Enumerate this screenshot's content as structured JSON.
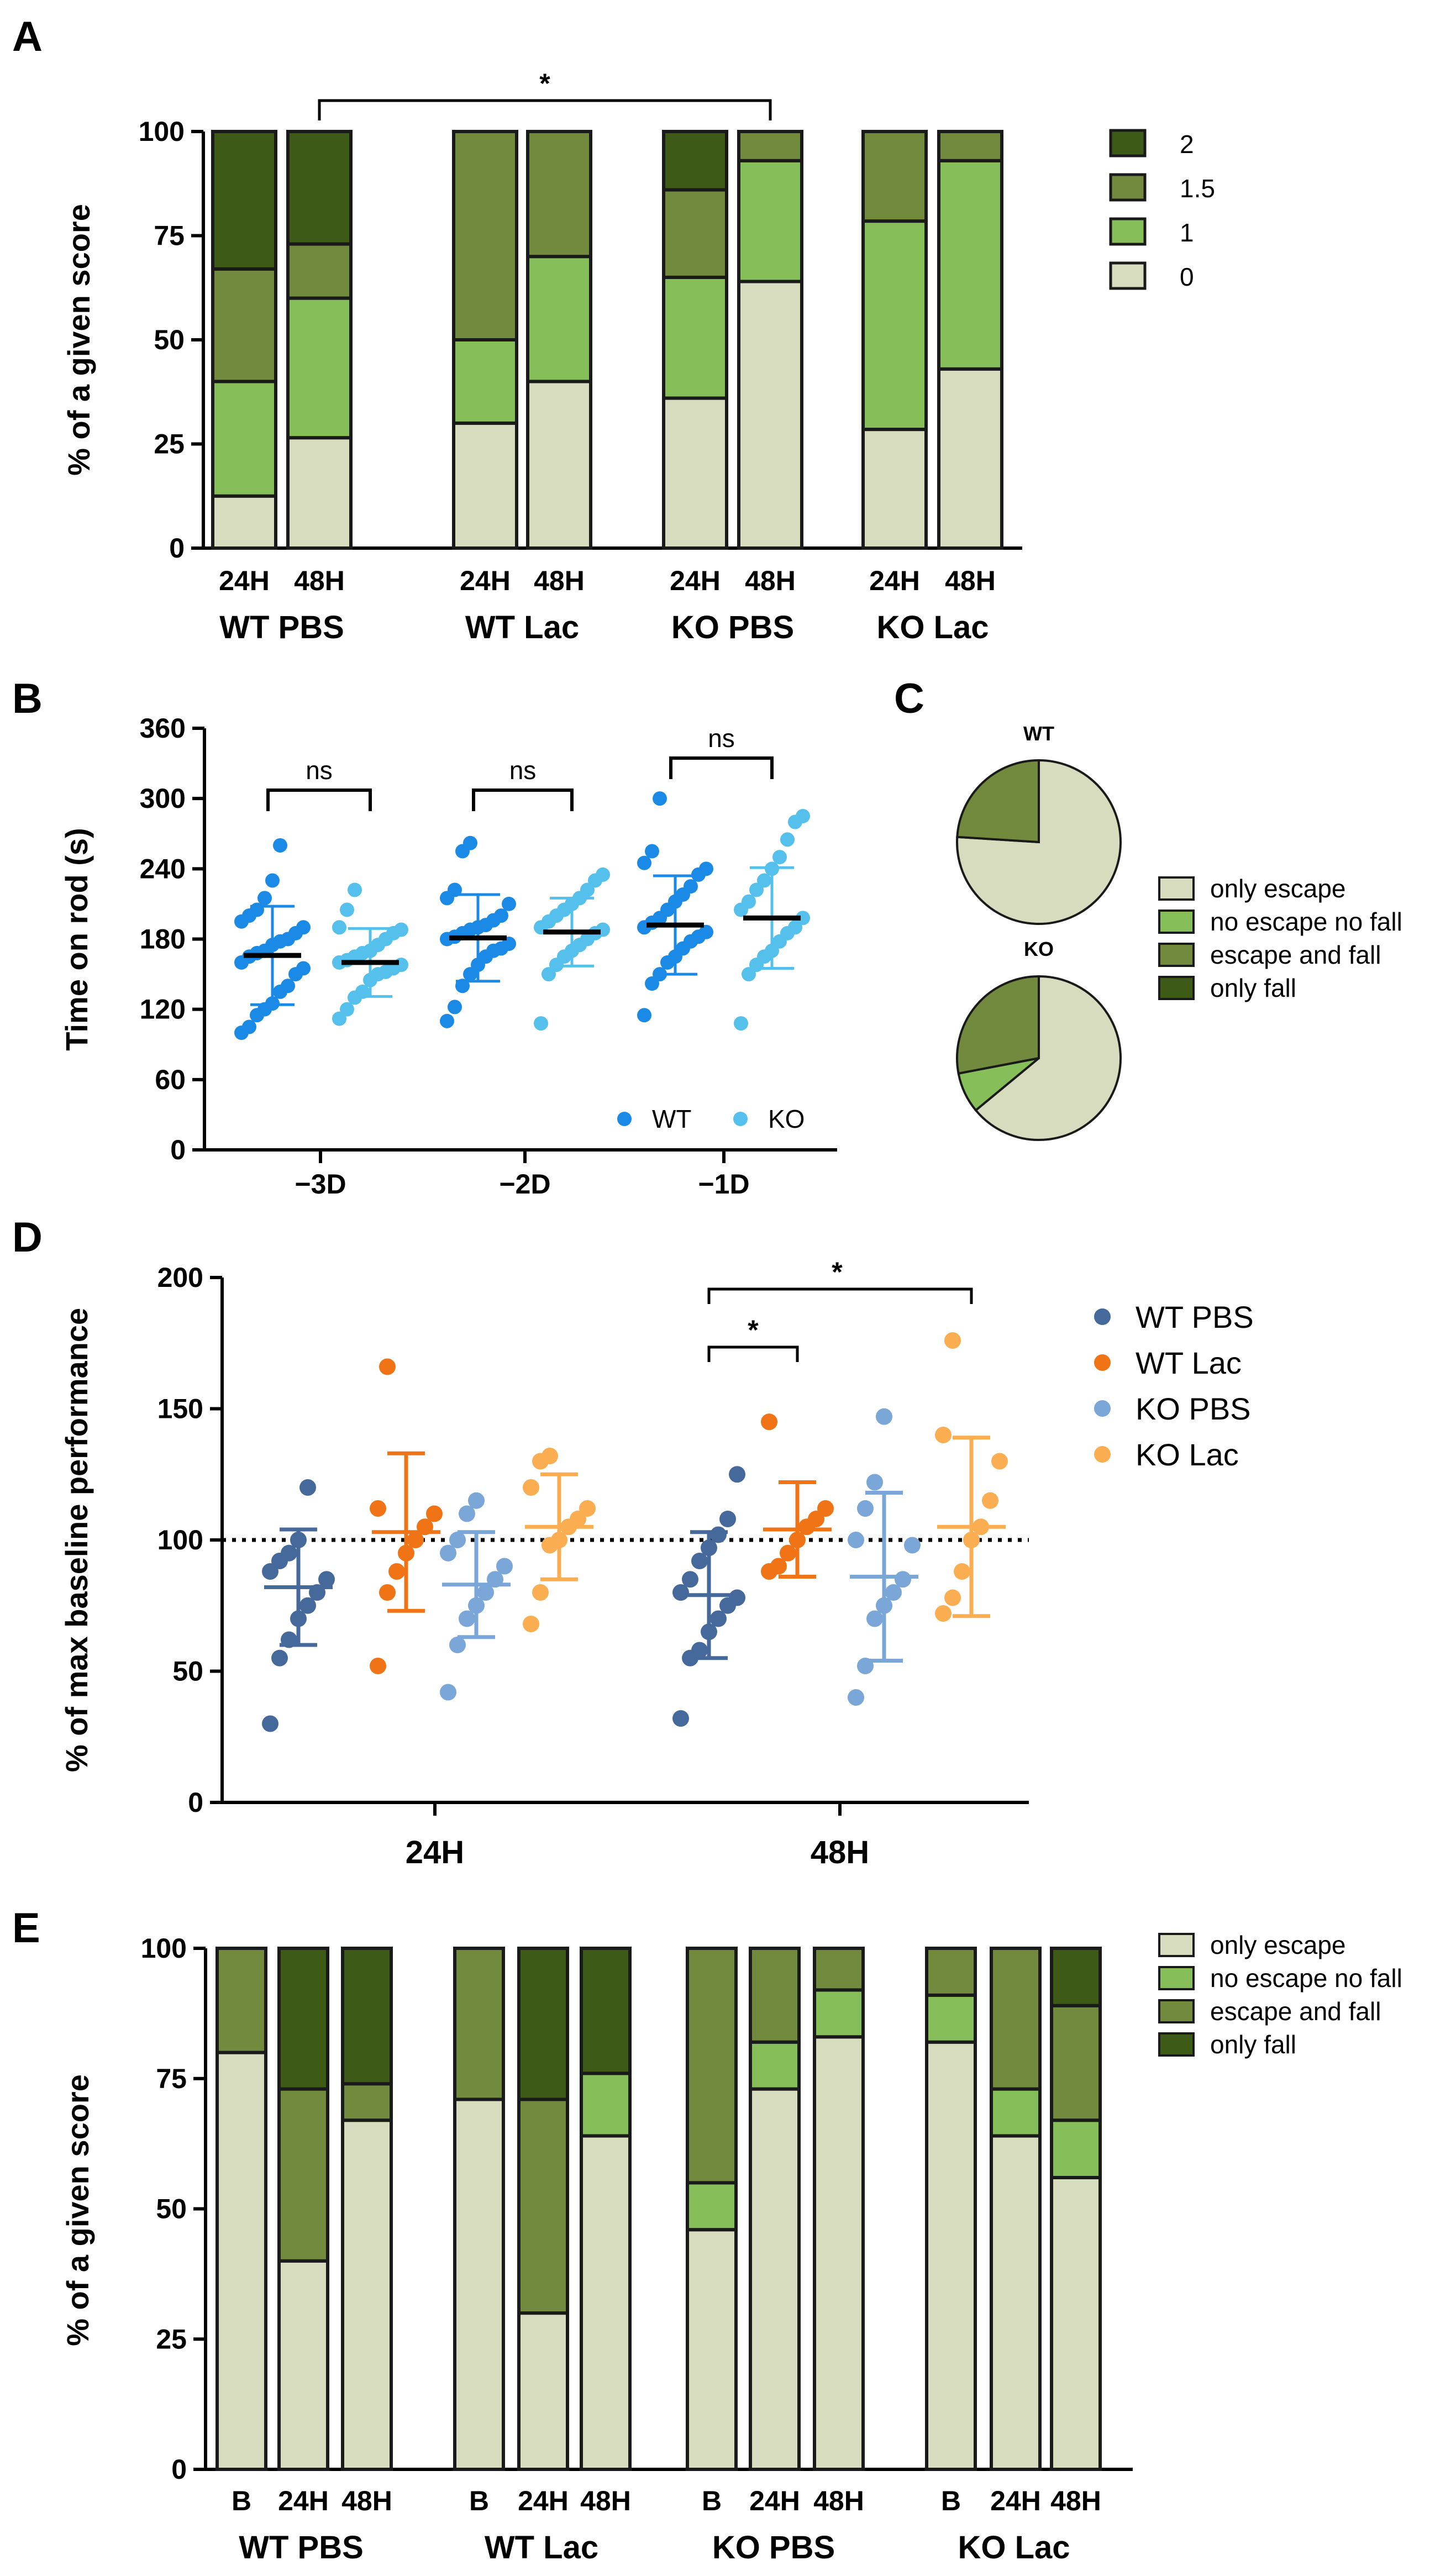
{
  "colors": {
    "score_0": "#d8dcbf",
    "score_1": "#86bf5a",
    "score_1_5": "#718a3d",
    "score_2": "#3d5a17",
    "wt": "#1a8ae6",
    "ko": "#55c0ec",
    "wt_pbs": "#46699b",
    "wt_lac": "#f07316",
    "ko_pbs": "#7aa6d8",
    "ko_lac": "#fbad52"
  },
  "panels": {
    "a": "A",
    "b": "B",
    "c": "C",
    "d": "D",
    "e": "E"
  },
  "chart_data": [
    {
      "id": "A",
      "type": "bar",
      "stacked": true,
      "ylabel": "% of a given score",
      "ylim": [
        0,
        100
      ],
      "yticks": [
        0,
        25,
        50,
        75,
        100
      ],
      "groups": [
        "WT PBS",
        "WT Lac",
        "KO PBS",
        "KO Lac"
      ],
      "categories": [
        "24H",
        "48H",
        "24H",
        "48H",
        "24H",
        "48H",
        "24H",
        "48H"
      ],
      "legend": [
        "2",
        "1.5",
        "1",
        "0"
      ],
      "series": [
        {
          "name": "0",
          "values": [
            12.5,
            26.5,
            30,
            40,
            36,
            64,
            28.5,
            43
          ]
        },
        {
          "name": "1",
          "values": [
            27.5,
            33.5,
            20,
            30,
            29,
            29,
            50,
            50
          ]
        },
        {
          "name": "1.5",
          "values": [
            27,
            13,
            50,
            30,
            21,
            7,
            21.5,
            7
          ]
        },
        {
          "name": "2",
          "values": [
            33,
            27,
            0,
            0,
            14,
            0,
            0,
            0
          ]
        }
      ],
      "significance": [
        {
          "from": 1,
          "to": 5,
          "label": "*"
        }
      ]
    },
    {
      "id": "B",
      "type": "scatter",
      "ylabel": "Time on rod (s)",
      "ylim": [
        0,
        360
      ],
      "yticks": [
        0,
        60,
        120,
        180,
        240,
        300,
        360
      ],
      "categories": [
        "−3D",
        "−2D",
        "−1D"
      ],
      "legend": [
        "WT",
        "KO"
      ],
      "significance": [
        "ns",
        "ns",
        "ns"
      ],
      "series": [
        {
          "name": "WT",
          "means": [
            166,
            181,
            192
          ],
          "sds": [
            42,
            37,
            42
          ],
          "points": [
            [
              100,
              105,
              115,
              120,
              125,
              135,
              140,
              150,
              155,
              160,
              165,
              168,
              170,
              175,
              178,
              180,
              185,
              190,
              195,
              200,
              205,
              215,
              230,
              260
            ],
            [
              110,
              122,
              140,
              150,
              158,
              165,
              170,
              172,
              176,
              180,
              182,
              185,
              188,
              190,
              192,
              196,
              200,
              210,
              215,
              222,
              255,
              262
            ],
            [
              115,
              142,
              150,
              160,
              165,
              172,
              178,
              182,
              186,
              190,
              194,
              198,
              205,
              212,
              218,
              225,
              235,
              240,
              245,
              255,
              300
            ]
          ]
        },
        {
          "name": "KO",
          "means": [
            160,
            186,
            198
          ],
          "sds": [
            29,
            29,
            43
          ],
          "points": [
            [
              112,
              120,
              130,
              135,
              145,
              150,
              152,
              155,
              158,
              160,
              162,
              165,
              168,
              170,
              175,
              180,
              185,
              188,
              190,
              205,
              222
            ],
            [
              108,
              150,
              158,
              165,
              170,
              175,
              180,
              185,
              188,
              190,
              195,
              200,
              205,
              210,
              215,
              222,
              230,
              235
            ],
            [
              108,
              150,
              158,
              165,
              170,
              178,
              185,
              190,
              198,
              205,
              212,
              222,
              230,
              240,
              250,
              265,
              280,
              285
            ]
          ]
        }
      ]
    },
    {
      "id": "C",
      "type": "pie",
      "legend": [
        "only escape",
        "no escape no fall",
        "escape and fall",
        "only fall"
      ],
      "pies": [
        {
          "title": "WT",
          "values": [
            76,
            0,
            24,
            0
          ]
        },
        {
          "title": "KO",
          "values": [
            64,
            8,
            28,
            0
          ]
        }
      ]
    },
    {
      "id": "D",
      "type": "scatter",
      "ylabel": "% of max baseline performance",
      "ylim": [
        0,
        200
      ],
      "yticks": [
        0,
        50,
        100,
        150,
        200
      ],
      "categories": [
        "24H",
        "48H"
      ],
      "reference_line": 100,
      "legend": [
        "WT PBS",
        "WT Lac",
        "KO PBS",
        "KO Lac"
      ],
      "significance": [
        {
          "from": "WT PBS 48H",
          "to": "WT Lac 48H",
          "label": "*"
        },
        {
          "from": "WT PBS 48H",
          "to": "KO Lac 48H",
          "label": "*"
        }
      ],
      "series": [
        {
          "name": "WT PBS",
          "means": [
            82,
            79
          ],
          "sds": [
            22,
            24
          ],
          "points": [
            [
              30,
              55,
              62,
              70,
              75,
              80,
              85,
              88,
              92,
              95,
              100,
              120
            ],
            [
              32,
              55,
              58,
              65,
              70,
              75,
              78,
              80,
              85,
              92,
              97,
              102,
              108,
              125
            ]
          ]
        },
        {
          "name": "WT Lac",
          "means": [
            103,
            104
          ],
          "sds": [
            30,
            18
          ],
          "points": [
            [
              52,
              80,
              88,
              95,
              100,
              105,
              110,
              112,
              166
            ],
            [
              88,
              90,
              95,
              100,
              105,
              108,
              112,
              145
            ]
          ]
        },
        {
          "name": "KO PBS",
          "means": [
            83,
            86
          ],
          "sds": [
            20,
            32
          ],
          "points": [
            [
              42,
              60,
              70,
              75,
              80,
              85,
              90,
              95,
              100,
              110,
              115
            ],
            [
              40,
              52,
              70,
              75,
              80,
              85,
              98,
              100,
              112,
              122,
              147
            ]
          ]
        },
        {
          "name": "KO Lac",
          "means": [
            105,
            105
          ],
          "sds": [
            20,
            34
          ],
          "points": [
            [
              68,
              80,
              98,
              100,
              105,
              108,
              112,
              120,
              130,
              132
            ],
            [
              72,
              78,
              88,
              100,
              105,
              115,
              130,
              140,
              176
            ]
          ]
        }
      ]
    },
    {
      "id": "E",
      "type": "bar",
      "stacked": true,
      "ylabel": "% of a given score",
      "ylim": [
        0,
        100
      ],
      "yticks": [
        0,
        25,
        50,
        75,
        100
      ],
      "groups": [
        "WT PBS",
        "WT Lac",
        "KO PBS",
        "KO Lac"
      ],
      "categories": [
        "B",
        "24H",
        "48H",
        "B",
        "24H",
        "48H",
        "B",
        "24H",
        "48H",
        "B",
        "24H",
        "48H"
      ],
      "legend": [
        "only escape",
        "no escape no fall",
        "escape and fall",
        "only fall"
      ],
      "series": [
        {
          "name": "only escape",
          "values": [
            80,
            40,
            67,
            71,
            30,
            64,
            46,
            73,
            83,
            82,
            64,
            56
          ]
        },
        {
          "name": "no escape no fall",
          "values": [
            0,
            0,
            0,
            0,
            0,
            12,
            9,
            9,
            9,
            9,
            9,
            11
          ]
        },
        {
          "name": "escape and fall",
          "values": [
            20,
            33,
            7,
            29,
            41,
            0,
            45,
            18,
            8,
            9,
            27,
            22
          ]
        },
        {
          "name": "only fall",
          "values": [
            0,
            27,
            26,
            0,
            29,
            24,
            0,
            0,
            0,
            0,
            0,
            11
          ]
        }
      ]
    }
  ]
}
